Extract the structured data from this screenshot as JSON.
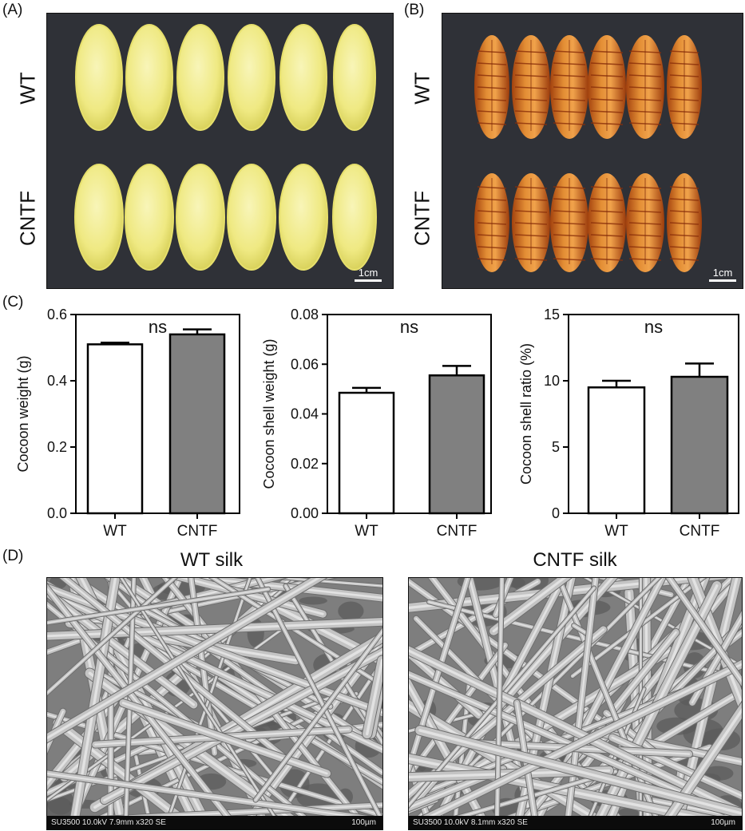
{
  "panels": {
    "a": {
      "label": "(A)",
      "row_labels": [
        "WT",
        "CNTF"
      ],
      "scale_label": "1cm"
    },
    "b": {
      "label": "(B)",
      "row_labels": [
        "WT",
        "CNTF"
      ],
      "scale_label": "1cm"
    },
    "c": {
      "label": "(C)"
    },
    "d": {
      "label": "(D)",
      "titles": [
        "WT silk",
        "CNTF silk"
      ],
      "sem_info": [
        "SU3500 10.0kV 7.9mm x320 SE",
        "SU3500 10.0kV 8.1mm x320 SE"
      ],
      "sem_scale": "100µm"
    }
  },
  "colors": {
    "cocoon": "#f1ec8e",
    "pupa": "#d57a22",
    "photo_bg": "#2f3137",
    "bar_wt": "#ffffff",
    "bar_cntf": "#808080",
    "sem_bg": "#8d8d8d"
  },
  "chart_data": [
    {
      "type": "bar",
      "categories": [
        "WT",
        "CNTF"
      ],
      "values": [
        0.51,
        0.54
      ],
      "errors": [
        0.005,
        0.015
      ],
      "ylabel": "Cocoon weight (g)",
      "ylim": [
        0,
        0.6
      ],
      "yticks": [
        0.0,
        0.2,
        0.4,
        0.6
      ],
      "ytick_labels": [
        "0.0",
        "0.2",
        "0.4",
        "0.6"
      ],
      "annotation": "ns",
      "grid": false,
      "legend": "none"
    },
    {
      "type": "bar",
      "categories": [
        "WT",
        "CNTF"
      ],
      "values": [
        0.0485,
        0.0555
      ],
      "errors": [
        0.002,
        0.0038
      ],
      "ylabel": "Cocoon shell weight (g)",
      "ylim": [
        0,
        0.08
      ],
      "yticks": [
        0.0,
        0.02,
        0.04,
        0.06,
        0.08
      ],
      "ytick_labels": [
        "0.00",
        "0.02",
        "0.04",
        "0.06",
        "0.08"
      ],
      "annotation": "ns",
      "grid": false,
      "legend": "none"
    },
    {
      "type": "bar",
      "categories": [
        "WT",
        "CNTF"
      ],
      "values": [
        9.5,
        10.3
      ],
      "errors": [
        0.5,
        1.0
      ],
      "ylabel": "Cocoon shell ratio (%)",
      "ylim": [
        0,
        15
      ],
      "yticks": [
        0,
        5,
        10,
        15
      ],
      "ytick_labels": [
        "0",
        "5",
        "10",
        "15"
      ],
      "annotation": "ns",
      "grid": false,
      "legend": "none"
    }
  ]
}
